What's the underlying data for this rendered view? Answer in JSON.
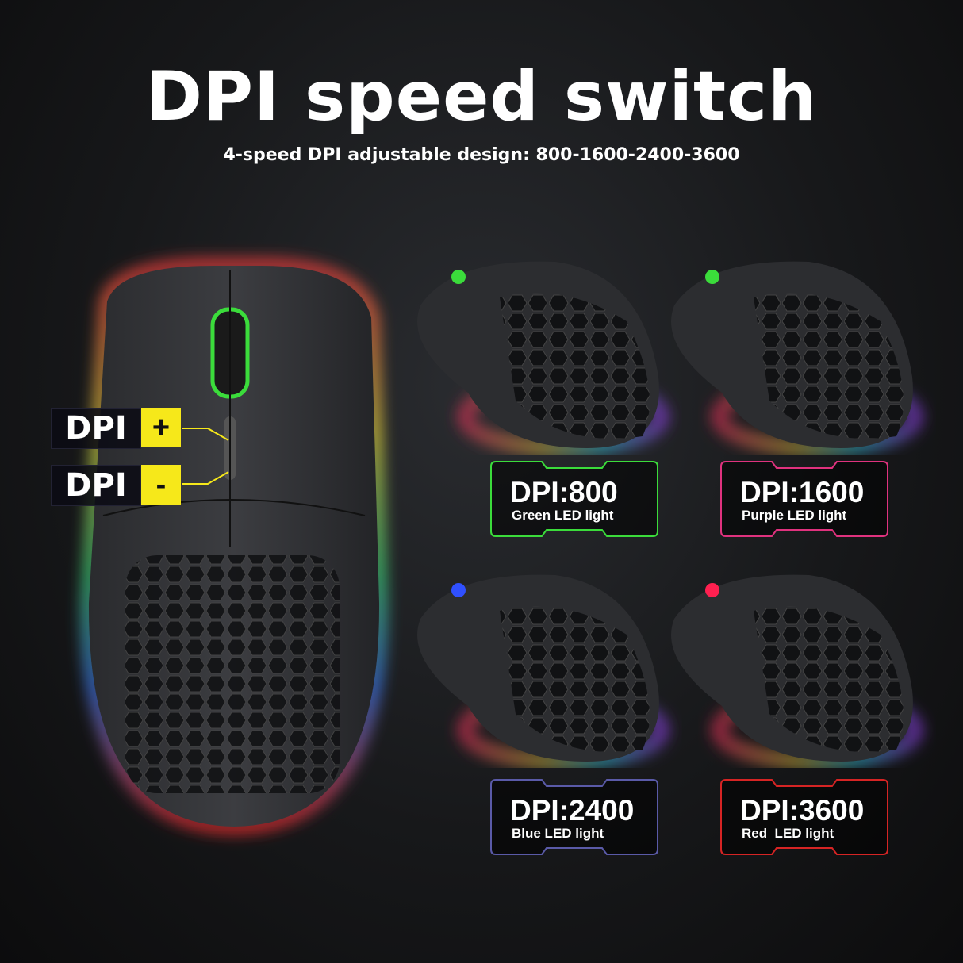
{
  "header": {
    "title": "DPI speed switch",
    "subtitle": "4-speed DPI adjustable design: 800-1600-2400-3600"
  },
  "buttons": {
    "plus": {
      "label": "DPI",
      "sign": "+"
    },
    "minus": {
      "label": "DPI",
      "sign": "-"
    },
    "callout_color": "#f6e81a"
  },
  "modes": [
    {
      "value": "DPI:800",
      "led": "Green LED light",
      "color": "#3bdc3b"
    },
    {
      "value": "DPI:1600",
      "led": "Purple LED light",
      "color": "#e0327e"
    },
    {
      "value": "DPI:2400",
      "led": "Blue LED light",
      "color": "#5a5aa8"
    },
    {
      "value": "DPI:3600",
      "led": "Red  LED light",
      "color": "#d62424"
    }
  ]
}
